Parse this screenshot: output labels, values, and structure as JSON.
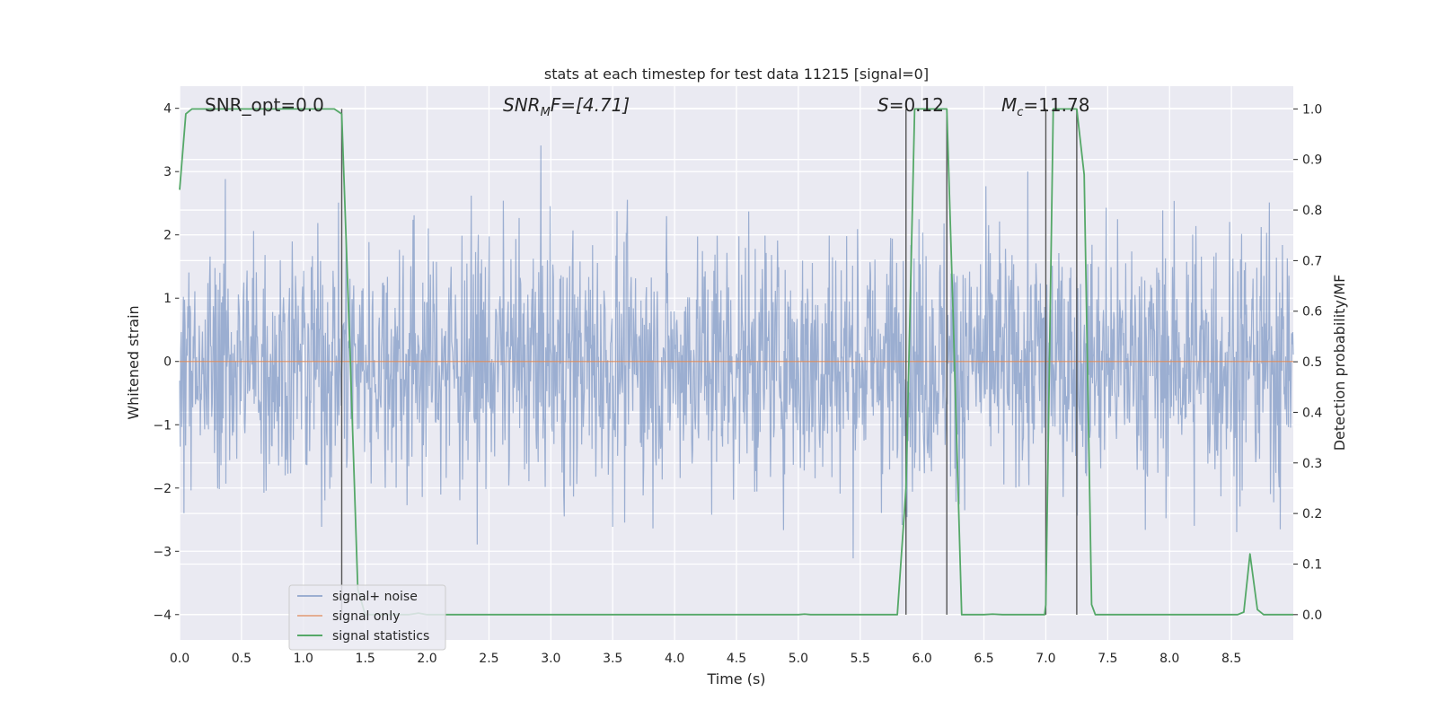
{
  "chart_data": {
    "type": "line",
    "title": "stats at each timestep for test data 11215 [signal=0]",
    "xlabel": "Time (s)",
    "ylabel": "Whitened strain",
    "y2label": "Detection probability/MF",
    "xlim": [
      0,
      9
    ],
    "ylim": [
      -4.4,
      4.35
    ],
    "y2lim": [
      -0.05,
      1.045
    ],
    "x_ticks": [
      0.0,
      0.5,
      1.0,
      1.5,
      2.0,
      2.5,
      3.0,
      3.5,
      4.0,
      4.5,
      5.0,
      5.5,
      6.0,
      6.5,
      7.0,
      7.5,
      8.0,
      8.5
    ],
    "x_tick_labels": [
      "0.0",
      "0.5",
      "1.0",
      "1.5",
      "2.0",
      "2.5",
      "3.0",
      "3.5",
      "4.0",
      "4.5",
      "5.0",
      "5.5",
      "6.0",
      "6.5",
      "7.0",
      "7.5",
      "8.0",
      "8.5"
    ],
    "y_ticks": [
      4,
      3,
      2,
      1,
      0,
      -1,
      -2,
      -3,
      -4
    ],
    "y_tick_labels": [
      "4",
      "3",
      "2",
      "1",
      "0",
      "−1",
      "−2",
      "−3",
      "−4"
    ],
    "y2_ticks": [
      1.0,
      0.9,
      0.8,
      0.7,
      0.6,
      0.5,
      0.4,
      0.3,
      0.2,
      0.1,
      0.0
    ],
    "y2_tick_labels": [
      "1.0",
      "0.9",
      "0.8",
      "0.7",
      "0.6",
      "0.5",
      "0.4",
      "0.3",
      "0.2",
      "0.1",
      "0.0"
    ],
    "grid": true,
    "legend_position": "lower-left",
    "annotations": {
      "snr_opt": "SNR_opt=0.0",
      "snr_mf_sym": "SNR",
      "snr_mf_sub": "M",
      "snr_mf_rest": "F=[4.71]",
      "s_sym": "S",
      "s_rest": "=0.12",
      "mc_sym": "M",
      "mc_sub": "c",
      "mc_rest": "=11.78"
    },
    "series": [
      {
        "name": "signal+ noise",
        "color": "#4c72b0",
        "note_style": "dense noise trace",
        "noise_std": 1.0,
        "sample_count": 2048
      },
      {
        "name": "signal only",
        "color": "#dd8452",
        "constant_value": 0
      },
      {
        "name": "signal statistics",
        "color": "#55a868",
        "axis": "right",
        "points": [
          [
            0.0,
            0.84
          ],
          [
            0.05,
            0.99
          ],
          [
            0.1,
            1.0
          ],
          [
            1.25,
            1.0
          ],
          [
            1.31,
            0.99
          ],
          [
            1.38,
            0.5
          ],
          [
            1.44,
            0.05
          ],
          [
            1.5,
            0.0
          ],
          [
            1.85,
            0.0
          ],
          [
            1.93,
            0.003
          ],
          [
            2.0,
            0.0
          ],
          [
            5.0,
            0.0
          ],
          [
            5.05,
            0.001
          ],
          [
            5.1,
            0.0
          ],
          [
            5.8,
            0.0
          ],
          [
            5.87,
            0.25
          ],
          [
            5.94,
            1.0
          ],
          [
            6.2,
            1.0
          ],
          [
            6.25,
            0.6
          ],
          [
            6.32,
            0.0
          ],
          [
            6.5,
            0.0
          ],
          [
            6.57,
            0.001
          ],
          [
            6.65,
            0.0
          ],
          [
            6.99,
            0.0
          ],
          [
            7.0,
            0.02
          ],
          [
            7.06,
            1.0
          ],
          [
            7.25,
            1.0
          ],
          [
            7.31,
            0.87
          ],
          [
            7.37,
            0.02
          ],
          [
            7.4,
            0.0
          ],
          [
            8.55,
            0.0
          ],
          [
            8.6,
            0.005
          ],
          [
            8.65,
            0.12
          ],
          [
            8.71,
            0.01
          ],
          [
            8.76,
            0.0
          ],
          [
            9.0,
            0.0
          ]
        ]
      }
    ],
    "vertical_markers": [
      {
        "x": 1.31,
        "y_top": 1.0
      },
      {
        "x": 5.87,
        "y_top": 1.0
      },
      {
        "x": 6.2,
        "y_top": 1.0
      },
      {
        "x": 7.0,
        "y_top": 1.0
      },
      {
        "x": 7.25,
        "y_top": 1.0
      }
    ],
    "colors": {
      "plot_background": "#eaeaf2",
      "grid": "#ffffff",
      "marker_line": "#555555"
    }
  }
}
